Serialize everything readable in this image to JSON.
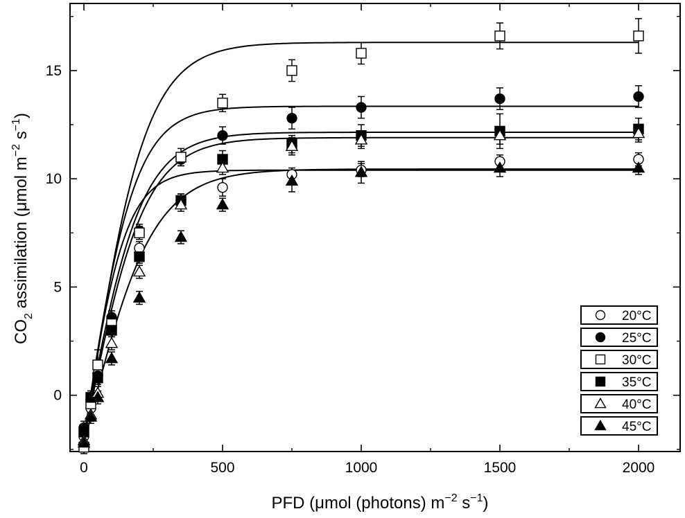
{
  "chart_data": {
    "type": "scatter",
    "xlabel": "PFD (μmol (photons) m",
    "xlabel_sup1": "−2",
    "xlabel_mid": " s",
    "xlabel_sup2": "−1",
    "xlabel_end": ")",
    "ylabel": "CO",
    "ylabel_sub": "2",
    "ylabel_mid": " assimilation (μmol m",
    "ylabel_sup1": "−2",
    "ylabel_s": " s",
    "ylabel_sup2": "−1",
    "ylabel_end": ")",
    "xlim": [
      -50,
      2150
    ],
    "ylim": [
      -2.6,
      18.1
    ],
    "xticks": [
      "0",
      "500",
      "1000",
      "1500",
      "2000"
    ],
    "yticks": [
      "0",
      "5",
      "10",
      "15"
    ],
    "grid": false,
    "legend_position": "bottom-right",
    "series": [
      {
        "name": "20°C",
        "marker": "circle",
        "filled": false,
        "x": [
          0,
          25,
          50,
          100,
          200,
          350,
          500,
          750,
          1000,
          1500,
          2000
        ],
        "y": [
          -1.9,
          -0.6,
          1.0,
          3.4,
          6.8,
          9.0,
          9.6,
          10.2,
          10.4,
          10.8,
          10.9
        ],
        "err": [
          0.3,
          0.3,
          0.3,
          0.3,
          0.3,
          0.3,
          0.4,
          0.3,
          0.3,
          0.3,
          0.3
        ],
        "fit": {
          "amax": 10.4,
          "y0": -2.0,
          "k": 0.00665
        }
      },
      {
        "name": "25°C",
        "marker": "circle",
        "filled": true,
        "x": [
          0,
          25,
          50,
          100,
          200,
          350,
          500,
          750,
          1000,
          1500,
          2000
        ],
        "y": [
          -1.5,
          -0.1,
          0.9,
          3.6,
          7.6,
          10.9,
          12.0,
          12.8,
          13.3,
          13.7,
          13.8
        ],
        "err": [
          0.3,
          0.3,
          0.3,
          0.3,
          0.3,
          0.3,
          0.4,
          0.5,
          0.5,
          0.5,
          0.5
        ],
        "fit": {
          "amax": 13.35,
          "y0": -2.0,
          "k": 0.00545
        }
      },
      {
        "name": "30°C",
        "marker": "square",
        "filled": false,
        "x": [
          0,
          25,
          50,
          100,
          200,
          350,
          500,
          750,
          1000,
          1500,
          2000
        ],
        "y": [
          -2.4,
          -0.4,
          1.4,
          3.3,
          7.5,
          11.0,
          13.5,
          15.0,
          15.8,
          16.6,
          16.6
        ],
        "err": [
          0.3,
          0.3,
          0.7,
          0.3,
          0.3,
          0.4,
          0.4,
          0.5,
          0.5,
          0.6,
          0.8
        ],
        "fit": {
          "amax": 16.3,
          "y0": -2.3,
          "k": 0.0046
        }
      },
      {
        "name": "35°C",
        "marker": "square",
        "filled": true,
        "x": [
          0,
          25,
          50,
          100,
          200,
          350,
          500,
          750,
          1000,
          1500,
          2000
        ],
        "y": [
          -1.7,
          -0.1,
          0.8,
          3.0,
          6.4,
          9.0,
          10.9,
          11.6,
          12.0,
          12.2,
          12.3
        ],
        "err": [
          0.3,
          0.3,
          0.3,
          0.3,
          0.3,
          0.3,
          0.4,
          0.4,
          0.5,
          0.8,
          0.5
        ],
        "fit": {
          "amax": 12.15,
          "y0": -2.0,
          "k": 0.00485
        }
      },
      {
        "name": "40°C",
        "marker": "triangle",
        "filled": false,
        "x": [
          0,
          25,
          50,
          100,
          200,
          350,
          500,
          750,
          1000,
          1500,
          2000
        ],
        "y": [
          -2.1,
          -0.9,
          0.1,
          2.4,
          5.7,
          8.8,
          10.5,
          11.5,
          11.8,
          12.0,
          12.1
        ],
        "err": [
          0.3,
          0.3,
          0.3,
          0.3,
          0.3,
          0.3,
          0.3,
          0.4,
          0.4,
          0.4,
          0.4
        ],
        "fit": {
          "amax": 11.9,
          "y0": -2.1,
          "k": 0.00465
        }
      },
      {
        "name": "45°C",
        "marker": "triangle",
        "filled": true,
        "x": [
          0,
          25,
          50,
          100,
          200,
          350,
          500,
          750,
          1000,
          1500,
          2000
        ],
        "y": [
          -2.2,
          -1.0,
          -0.1,
          1.7,
          4.5,
          7.3,
          8.8,
          9.9,
          10.3,
          10.5,
          10.5
        ],
        "err": [
          0.3,
          0.3,
          0.3,
          0.3,
          0.3,
          0.3,
          0.3,
          0.5,
          0.5,
          0.4,
          0.3
        ],
        "fit": {
          "amax": 10.45,
          "y0": -2.3,
          "k": 0.0041
        }
      }
    ]
  }
}
